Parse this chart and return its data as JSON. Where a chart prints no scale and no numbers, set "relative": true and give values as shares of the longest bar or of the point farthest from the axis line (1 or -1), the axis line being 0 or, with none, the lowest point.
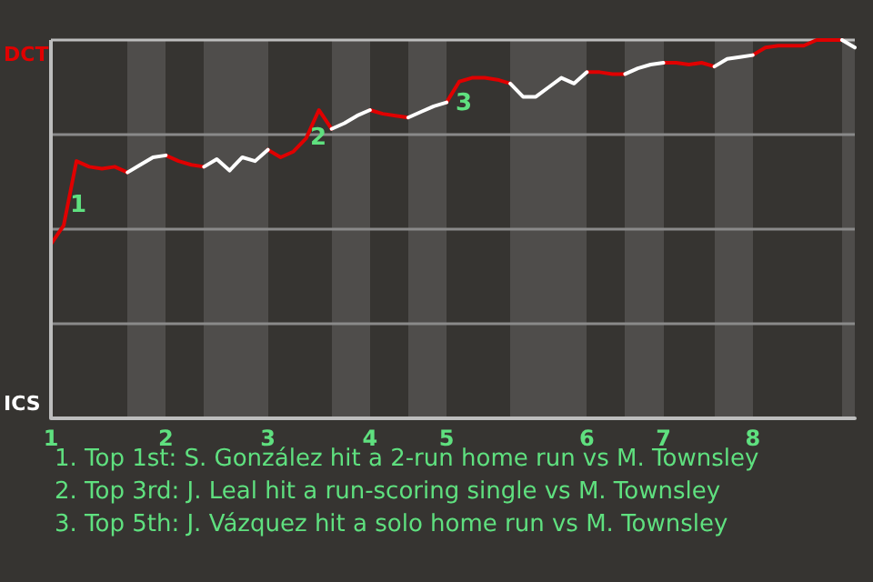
{
  "chart_data": {
    "type": "line",
    "categories": [
      "1",
      null,
      null,
      null,
      null,
      null,
      null,
      null,
      null,
      "2",
      null,
      null,
      null,
      null,
      null,
      null,
      null,
      "3",
      null,
      null,
      null,
      null,
      null,
      null,
      null,
      "4",
      null,
      null,
      null,
      null,
      null,
      "5",
      null,
      null,
      null,
      null,
      null,
      null,
      null,
      null,
      null,
      null,
      "6",
      null,
      null,
      null,
      null,
      null,
      "7",
      null,
      null,
      null,
      null,
      null,
      null,
      "8",
      null,
      null,
      null,
      null,
      null,
      null,
      null,
      null
    ],
    "relative": true,
    "series": [
      {
        "color": "#e00000",
        "values": [
          0.46,
          0.51,
          0.68,
          0.665,
          0.66,
          0.665,
          0.65,
          null,
          null,
          0.695,
          0.68,
          0.67,
          0.665,
          null,
          null,
          null,
          null,
          0.71,
          0.69,
          0.705,
          0.74,
          0.815,
          0.765,
          null,
          null,
          0.815,
          0.805,
          0.8,
          0.795,
          null,
          null,
          0.835,
          0.89,
          0.9,
          0.9,
          0.895,
          0.885,
          null,
          null,
          null,
          null,
          null,
          0.915,
          0.915,
          0.91,
          0.91,
          null,
          null,
          0.94,
          0.94,
          0.935,
          0.94,
          0.93,
          null,
          null,
          0.96,
          0.98,
          0.985,
          0.985,
          0.985,
          1,
          1,
          1,
          null
        ]
      },
      {
        "color": "#ffffff",
        "values": [
          null,
          null,
          null,
          null,
          null,
          null,
          0.65,
          0.67,
          0.69,
          0.695,
          null,
          null,
          0.665,
          0.685,
          0.655,
          0.69,
          0.68,
          0.71,
          null,
          null,
          null,
          null,
          0.765,
          0.78,
          0.8,
          0.815,
          null,
          null,
          0.795,
          0.81,
          0.825,
          0.835,
          null,
          null,
          null,
          null,
          0.885,
          0.85,
          0.85,
          0.875,
          0.9,
          0.885,
          0.915,
          null,
          null,
          0.91,
          0.925,
          0.935,
          0.94,
          null,
          null,
          null,
          0.93,
          0.95,
          0.955,
          0.96,
          null,
          null,
          null,
          null,
          null,
          null,
          1,
          0.98
        ]
      }
    ],
    "grid": "y",
    "marker": "none",
    "line_style": "solid",
    "annotations": [
      "DCT",
      "ICS",
      "1",
      "2",
      "3",
      "1. Top 1st: S. González hit a 2-run home run vs M. Townsley",
      "2. Top 3rd: J. Leal hit a run-scoring single vs M. Townsley",
      "3. Top 5th: J. Vázquez hit a solo home run vs M. Townsley"
    ]
  }
}
